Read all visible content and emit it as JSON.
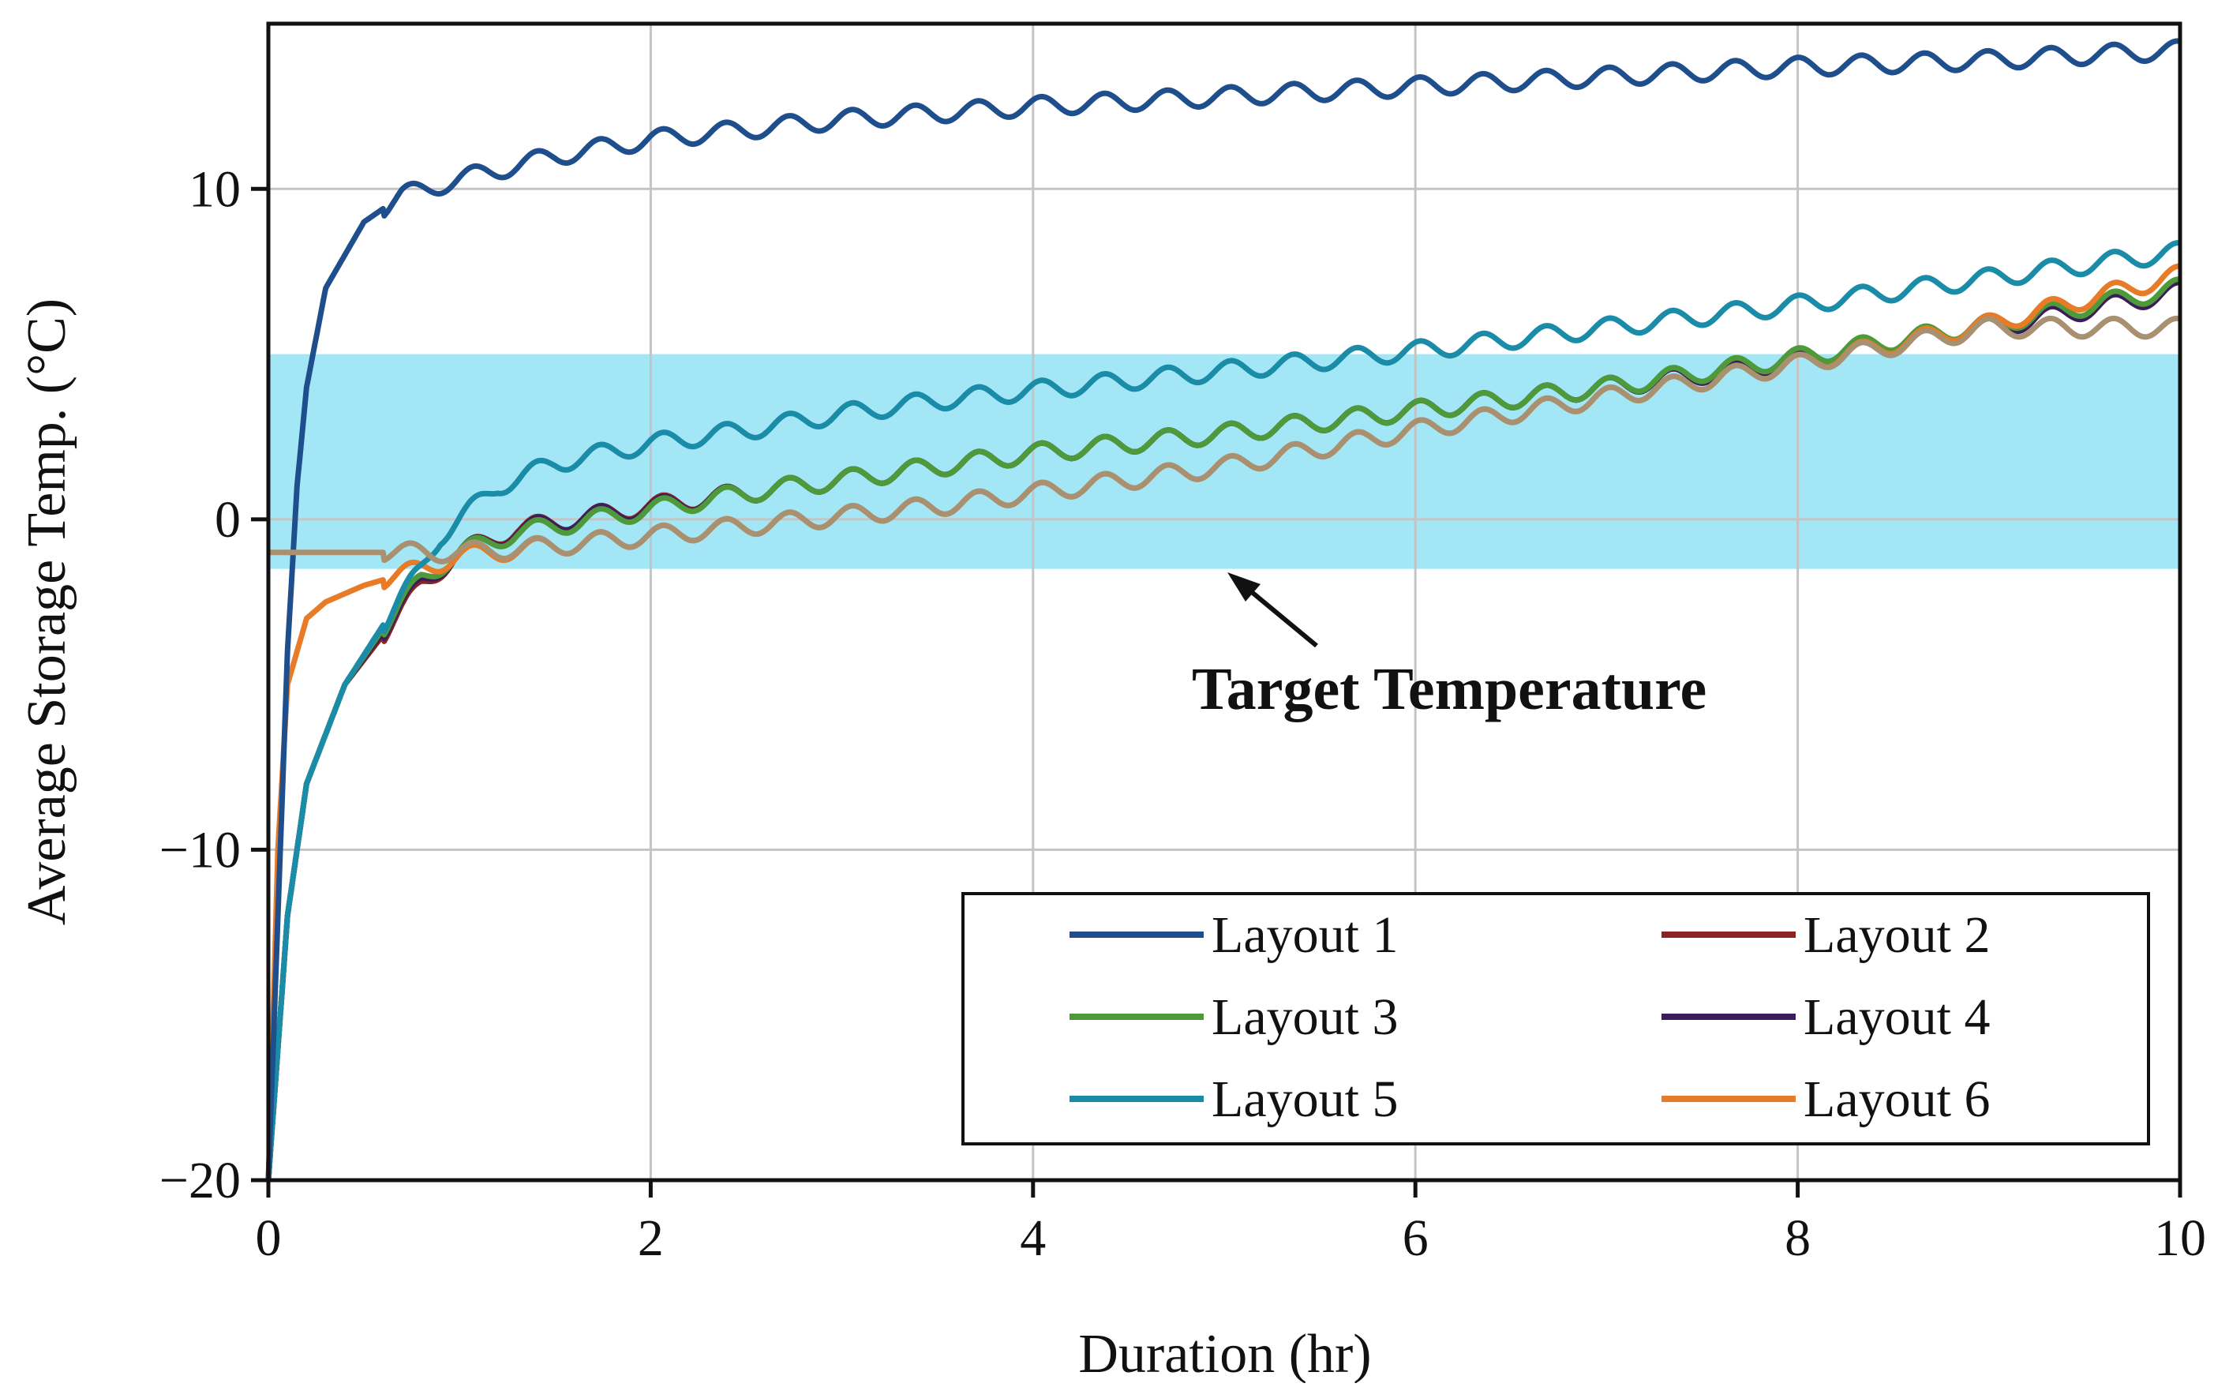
{
  "chart_data": {
    "type": "line",
    "title": "",
    "xlabel": "Duration (hr)",
    "ylabel": "Average Storage Temp. (°C)",
    "xlim": [
      0,
      10
    ],
    "ylim": [
      -20,
      15
    ],
    "x_ticks": [
      "0",
      "2",
      "4",
      "6",
      "8",
      "10"
    ],
    "y_ticks": [
      "−20",
      "−10",
      "0",
      "10"
    ],
    "grid": true,
    "legend_position": "bottom-right",
    "target_band": {
      "label": "Target Temperature",
      "y_min": -1.5,
      "y_max": 5,
      "color": "#9ee6f6"
    },
    "series": [
      {
        "name": "Layout 1",
        "color": "#1f4e8c",
        "points": [
          [
            0,
            -20
          ],
          [
            0.05,
            -12
          ],
          [
            0.1,
            -4
          ],
          [
            0.15,
            1
          ],
          [
            0.2,
            4
          ],
          [
            0.3,
            7
          ],
          [
            0.5,
            9
          ],
          [
            0.7,
            9.8
          ],
          [
            1,
            10.3
          ],
          [
            1.5,
            11
          ],
          [
            2,
            11.5
          ],
          [
            2.5,
            11.8
          ],
          [
            3,
            12.1
          ],
          [
            3.5,
            12.3
          ],
          [
            4,
            12.5
          ],
          [
            5,
            12.8
          ],
          [
            6,
            13.1
          ],
          [
            7,
            13.4
          ],
          [
            8,
            13.7
          ],
          [
            9,
            13.9
          ],
          [
            10,
            14.2
          ]
        ]
      },
      {
        "name": "Layout 2",
        "color": "#8b2323",
        "points": [
          [
            0,
            -20
          ],
          [
            0.1,
            -12
          ],
          [
            0.2,
            -8
          ],
          [
            0.4,
            -5
          ],
          [
            0.6,
            -3.5
          ],
          [
            0.8,
            -2
          ],
          [
            1,
            -1
          ],
          [
            1.3,
            -0.3
          ],
          [
            1.6,
            0
          ],
          [
            2,
            0.4
          ],
          [
            2.5,
            0.8
          ],
          [
            3,
            1.2
          ],
          [
            3.5,
            1.6
          ],
          [
            4,
            2
          ],
          [
            5,
            2.6
          ],
          [
            6,
            3.3
          ],
          [
            7,
            4
          ],
          [
            8,
            4.8
          ],
          [
            9,
            5.8
          ],
          [
            10,
            6.9
          ]
        ]
      },
      {
        "name": "Layout 3",
        "color": "#4e9a3a",
        "points": [
          [
            0,
            -20
          ],
          [
            0.1,
            -12
          ],
          [
            0.2,
            -8
          ],
          [
            0.4,
            -5
          ],
          [
            0.6,
            -3.3
          ],
          [
            0.8,
            -1.8
          ],
          [
            1,
            -1
          ],
          [
            1.3,
            -0.4
          ],
          [
            1.6,
            -0.1
          ],
          [
            2,
            0.3
          ],
          [
            2.5,
            0.8
          ],
          [
            3,
            1.2
          ],
          [
            3.5,
            1.6
          ],
          [
            4,
            2
          ],
          [
            5,
            2.6
          ],
          [
            6,
            3.3
          ],
          [
            7,
            4
          ],
          [
            8,
            4.9
          ],
          [
            9,
            5.9
          ],
          [
            10,
            7
          ]
        ]
      },
      {
        "name": "Layout 4",
        "color": "#3a1d5c",
        "points": [
          [
            0,
            -20
          ],
          [
            0.1,
            -12
          ],
          [
            0.2,
            -8
          ],
          [
            0.4,
            -5
          ],
          [
            0.6,
            -3.4
          ],
          [
            0.8,
            -1.9
          ],
          [
            1,
            -1
          ],
          [
            1.3,
            -0.35
          ],
          [
            1.6,
            0
          ],
          [
            2,
            0.35
          ],
          [
            2.5,
            0.8
          ],
          [
            3,
            1.2
          ],
          [
            3.5,
            1.6
          ],
          [
            4,
            2
          ],
          [
            5,
            2.6
          ],
          [
            6,
            3.3
          ],
          [
            7,
            4
          ],
          [
            8,
            4.8
          ],
          [
            9,
            5.8
          ],
          [
            10,
            6.9
          ]
        ]
      },
      {
        "name": "Layout 5",
        "color": "#1a8ca8",
        "points": [
          [
            0,
            -20
          ],
          [
            0.1,
            -12
          ],
          [
            0.2,
            -8
          ],
          [
            0.4,
            -5
          ],
          [
            0.6,
            -3.2
          ],
          [
            0.8,
            -1.5
          ],
          [
            0.9,
            -0.5
          ],
          [
            1,
            0
          ],
          [
            1.2,
            1
          ],
          [
            1.5,
            1.7
          ],
          [
            2,
            2.3
          ],
          [
            2.5,
            2.7
          ],
          [
            3,
            3.2
          ],
          [
            3.5,
            3.6
          ],
          [
            4,
            3.9
          ],
          [
            5,
            4.5
          ],
          [
            6,
            5.1
          ],
          [
            7,
            5.8
          ],
          [
            8,
            6.5
          ],
          [
            9,
            7.3
          ],
          [
            10,
            8.1
          ]
        ]
      },
      {
        "name": "Layout 6",
        "color": "#e87b27",
        "points": [
          [
            0,
            -20
          ],
          [
            0.05,
            -10
          ],
          [
            0.1,
            -5
          ],
          [
            0.2,
            -3
          ],
          [
            0.3,
            -2.5
          ],
          [
            0.5,
            -2
          ],
          [
            0.8,
            -1.5
          ],
          [
            1,
            -1.1
          ],
          [
            1.5,
            -0.8
          ],
          [
            2,
            -0.5
          ],
          [
            2.5,
            -0.2
          ],
          [
            3,
            0.1
          ],
          [
            3.5,
            0.4
          ],
          [
            4,
            0.8
          ],
          [
            5,
            1.6
          ],
          [
            6,
            2.7
          ],
          [
            7,
            3.7
          ],
          [
            8,
            4.7
          ],
          [
            9,
            5.9
          ],
          [
            10,
            7.4
          ]
        ]
      }
    ],
    "extra_series": [
      {
        "color": "#a89070",
        "points": [
          [
            1,
            -1
          ],
          [
            1.5,
            -0.8
          ],
          [
            2,
            -0.5
          ],
          [
            2.5,
            -0.2
          ],
          [
            3,
            0.1
          ],
          [
            3.5,
            0.4
          ],
          [
            4,
            0.8
          ],
          [
            5,
            1.6
          ],
          [
            6,
            2.7
          ],
          [
            7,
            3.7
          ],
          [
            8,
            4.7
          ],
          [
            9,
            5.8
          ]
        ]
      }
    ]
  }
}
